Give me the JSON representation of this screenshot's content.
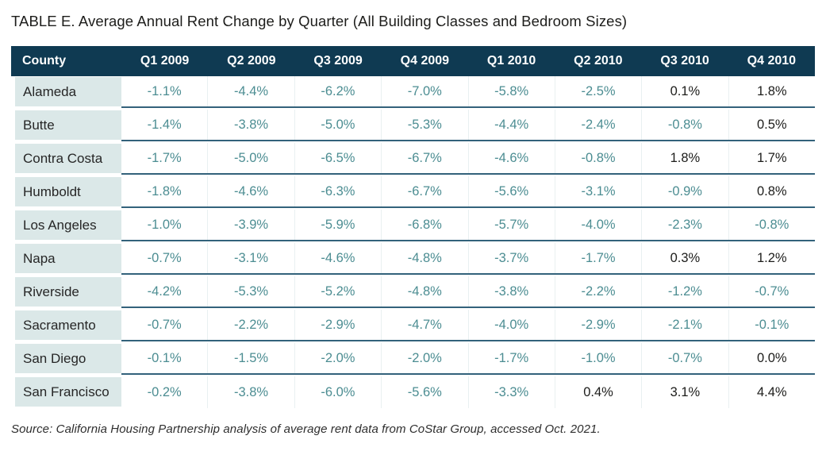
{
  "title": "TABLE E. Average Annual Rent Change by Quarter (All Building Classes and Bedroom Sizes)",
  "source": "Source: California Housing Partnership analysis of average rent data from CoStar Group, accessed Oct. 2021.",
  "colors": {
    "header_background": "#0f3a52",
    "header_text": "#ffffff",
    "county_cell_background": "#dbe8e8",
    "negative_value_text": "#4c8d92",
    "positive_value_text": "#1d1d1b",
    "row_separator": "#33627b"
  },
  "chart_data": {
    "type": "table",
    "title": "TABLE E. Average Annual Rent Change by Quarter (All Building Classes and Bedroom Sizes)",
    "columns": [
      "County",
      "Q1 2009",
      "Q2 2009",
      "Q3 2009",
      "Q4 2009",
      "Q1 2010",
      "Q2 2010",
      "Q3 2010",
      "Q4 2010"
    ],
    "rows": [
      {
        "county": "Alameda",
        "values": [
          "-1.1%",
          "-4.4%",
          "-6.2%",
          "-7.0%",
          "-5.8%",
          "-2.5%",
          "0.1%",
          "1.8%"
        ]
      },
      {
        "county": "Butte",
        "values": [
          "-1.4%",
          "-3.8%",
          "-5.0%",
          "-5.3%",
          "-4.4%",
          "-2.4%",
          "-0.8%",
          "0.5%"
        ]
      },
      {
        "county": "Contra Costa",
        "values": [
          "-1.7%",
          "-5.0%",
          "-6.5%",
          "-6.7%",
          "-4.6%",
          "-0.8%",
          "1.8%",
          "1.7%"
        ]
      },
      {
        "county": "Humboldt",
        "values": [
          "-1.8%",
          "-4.6%",
          "-6.3%",
          "-6.7%",
          "-5.6%",
          "-3.1%",
          "-0.9%",
          "0.8%"
        ]
      },
      {
        "county": "Los Angeles",
        "values": [
          "-1.0%",
          "-3.9%",
          "-5.9%",
          "-6.8%",
          "-5.7%",
          "-4.0%",
          "-2.3%",
          "-0.8%"
        ]
      },
      {
        "county": "Napa",
        "values": [
          "-0.7%",
          "-3.1%",
          "-4.6%",
          "-4.8%",
          "-3.7%",
          "-1.7%",
          "0.3%",
          "1.2%"
        ]
      },
      {
        "county": "Riverside",
        "values": [
          "-4.2%",
          "-5.3%",
          "-5.2%",
          "-4.8%",
          "-3.8%",
          "-2.2%",
          "-1.2%",
          "-0.7%"
        ]
      },
      {
        "county": "Sacramento",
        "values": [
          "-0.7%",
          "-2.2%",
          "-2.9%",
          "-4.7%",
          "-4.0%",
          "-2.9%",
          "-2.1%",
          "-0.1%"
        ]
      },
      {
        "county": "San Diego",
        "values": [
          "-0.1%",
          "-1.5%",
          "-2.0%",
          "-2.0%",
          "-1.7%",
          "-1.0%",
          "-0.7%",
          "0.0%"
        ]
      },
      {
        "county": "San Francisco",
        "values": [
          "-0.2%",
          "-3.8%",
          "-6.0%",
          "-5.6%",
          "-3.3%",
          "0.4%",
          "3.1%",
          "4.4%"
        ]
      }
    ]
  }
}
